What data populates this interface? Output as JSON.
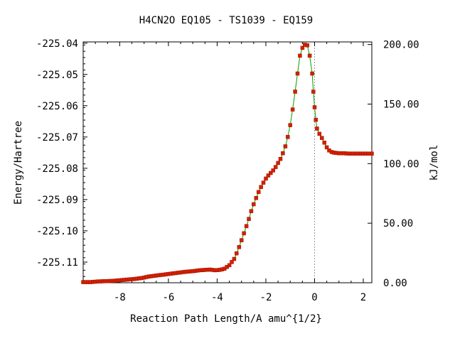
{
  "chart_data": {
    "type": "line",
    "title": "H4CN2O   EQ105 - TS1039 - EQ159",
    "xlabel": "Reaction Path Length/A amu^{1/2}",
    "ylabel": "Energy/Hartree",
    "y2label": "kJ/mol",
    "xlim": [
      -9.5,
      2.35
    ],
    "ylim": [
      -225.1166,
      -225.0396
    ],
    "y2lim": [
      0.0,
      202.2
    ],
    "x_ticks": [
      -8,
      -6,
      -4,
      -2,
      0,
      2
    ],
    "x_tick_labels": [
      "-8",
      "-6",
      "-4",
      "-2",
      "0",
      "2"
    ],
    "y_ticks": [
      -225.04,
      -225.05,
      -225.06,
      -225.07,
      -225.08,
      -225.09,
      -225.1,
      -225.11
    ],
    "y_tick_labels": [
      "-225.04",
      "-225.05",
      "-225.06",
      "-225.07",
      "-225.08",
      "-225.09",
      "-225.10",
      "-225.11"
    ],
    "y2_ticks": [
      0,
      50,
      100,
      150,
      200
    ],
    "y2_tick_labels": [
      "0.00",
      "50.00",
      "100.00",
      "150.00",
      "200.00"
    ],
    "ts_x": 0.0,
    "grid": false,
    "legend": "none",
    "colors": {
      "line": "#00a000",
      "marker": "#d42000",
      "marker_edge": "#a01000",
      "ts_line": "#999999"
    },
    "series": [
      {
        "x": [
          -9.5,
          -9.2,
          -8.9,
          -8.6,
          -8.3,
          -8.0,
          -7.7,
          -7.4,
          -7.1,
          -6.8,
          -6.5,
          -6.2,
          -5.9,
          -5.6,
          -5.3,
          -5.0,
          -4.7,
          -4.5,
          -4.3,
          -4.1,
          -3.9,
          -3.7,
          -3.5,
          -3.3,
          -3.2,
          -3.1,
          -3.0,
          -2.9,
          -2.8,
          -2.7,
          -2.6,
          -2.5,
          -2.4,
          -2.3,
          -2.2,
          -2.1,
          -2.0,
          -1.9,
          -1.8,
          -1.7,
          -1.6,
          -1.5,
          -1.4,
          -1.3,
          -1.2,
          -1.1,
          -1.0,
          -0.9,
          -0.8,
          -0.7,
          -0.6,
          -0.5,
          -0.4,
          -0.3,
          -0.2,
          -0.1,
          -0.05,
          0.0,
          0.05,
          0.1,
          0.2,
          0.3,
          0.4,
          0.5,
          0.6,
          0.7,
          0.8,
          0.9,
          1.0,
          1.1,
          1.2,
          1.4,
          1.6,
          1.8,
          2.0,
          2.2,
          2.35
        ],
        "y": [
          -225.1164,
          -225.1164,
          -225.1162,
          -225.1161,
          -225.116,
          -225.1158,
          -225.1156,
          -225.1154,
          -225.1151,
          -225.1146,
          -225.1143,
          -225.114,
          -225.1137,
          -225.1134,
          -225.1131,
          -225.1129,
          -225.1126,
          -225.1125,
          -225.1124,
          -225.1126,
          -225.1125,
          -225.1121,
          -225.111,
          -225.109,
          -225.1072,
          -225.1052,
          -225.103,
          -225.1008,
          -225.0985,
          -225.0962,
          -225.0937,
          -225.0915,
          -225.0895,
          -225.0876,
          -225.086,
          -225.0846,
          -225.0833,
          -225.0823,
          -225.0815,
          -225.0807,
          -225.0796,
          -225.0783,
          -225.077,
          -225.0752,
          -225.073,
          -225.07,
          -225.0662,
          -225.0612,
          -225.0555,
          -225.0497,
          -225.044,
          -225.0415,
          -225.0405,
          -225.0407,
          -225.044,
          -225.0497,
          -225.0555,
          -225.0605,
          -225.0645,
          -225.0673,
          -225.069,
          -225.0703,
          -225.0718,
          -225.0733,
          -225.0743,
          -225.0748,
          -225.075,
          -225.0751,
          -225.0752,
          -225.0752,
          -225.0752,
          -225.0753,
          -225.0753,
          -225.0753,
          -225.0753,
          -225.0753,
          -225.0753
        ]
      }
    ]
  }
}
